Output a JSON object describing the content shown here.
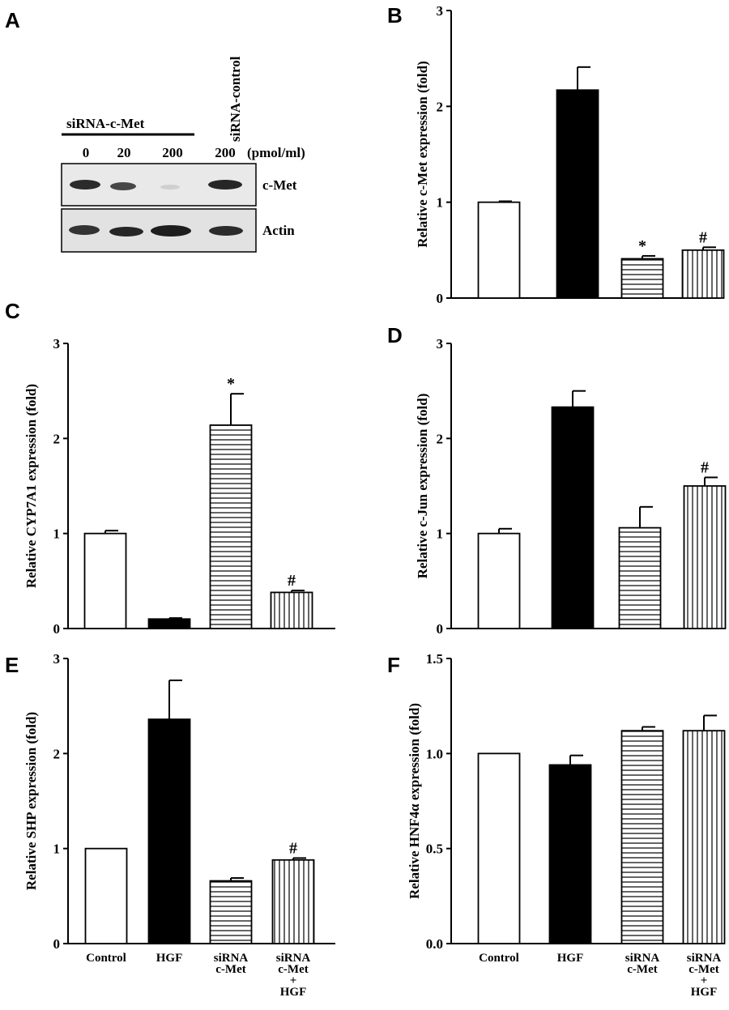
{
  "figure": {
    "panel_A": {
      "letter": "A",
      "treatment_label": "siRNA-c-Met",
      "control_label": "siRNA-control",
      "lanes": [
        "0",
        "20",
        "200",
        "200"
      ],
      "unit": "(pmol/ml)",
      "bands": [
        "c-Met",
        "Actin"
      ]
    }
  },
  "chart_data": [
    {
      "panel": "B",
      "type": "bar",
      "ylabel": "Relative c-Met expression (fold)",
      "categories": [
        "Control",
        "HGF",
        "siRNA c-Met",
        "siRNA c-Met + HGF"
      ],
      "values": [
        1.0,
        2.17,
        0.41,
        0.5
      ],
      "errors": [
        0.01,
        0.24,
        0.03,
        0.03
      ],
      "markers": [
        "",
        "",
        "*",
        "#"
      ],
      "ylim": [
        0,
        3
      ],
      "yticks": [
        "0",
        "1",
        "2",
        "3"
      ]
    },
    {
      "panel": "C",
      "type": "bar",
      "ylabel": "Relative CYP7A1 expression (fold)",
      "categories": [
        "Control",
        "HGF",
        "siRNA c-Met",
        "siRNA c-Met + HGF"
      ],
      "values": [
        1.0,
        0.1,
        2.14,
        0.38
      ],
      "errors": [
        0.03,
        0.01,
        0.33,
        0.02
      ],
      "markers": [
        "",
        "",
        "*",
        "#"
      ],
      "ylim": [
        0,
        3
      ],
      "yticks": [
        "0",
        "1",
        "2",
        "3"
      ]
    },
    {
      "panel": "D",
      "type": "bar",
      "ylabel": "Relative c-Jun expression (fold)",
      "categories": [
        "Control",
        "HGF",
        "siRNA c-Met",
        "siRNA c-Met + HGF"
      ],
      "values": [
        1.0,
        2.33,
        1.06,
        1.5
      ],
      "errors": [
        0.05,
        0.17,
        0.22,
        0.09
      ],
      "markers": [
        "",
        "",
        "",
        "#"
      ],
      "ylim": [
        0,
        3
      ],
      "yticks": [
        "0",
        "1",
        "2",
        "3"
      ]
    },
    {
      "panel": "E",
      "type": "bar",
      "ylabel": "Relative SHP expression (fold)",
      "categories": [
        "Control",
        "HGF",
        "siRNA c-Met",
        "siRNA c-Met + HGF"
      ],
      "values": [
        1.0,
        2.36,
        0.66,
        0.88
      ],
      "errors": [
        0.0,
        0.41,
        0.03,
        0.02
      ],
      "markers": [
        "",
        "",
        "",
        "#"
      ],
      "ylim": [
        0,
        3
      ],
      "yticks": [
        "0",
        "1",
        "2",
        "3"
      ],
      "xticklabels": [
        [
          "Control"
        ],
        [
          "HGF"
        ],
        [
          "siRNA",
          "c-Met"
        ],
        [
          "siRNA",
          "c-Met",
          "+",
          "HGF"
        ]
      ]
    },
    {
      "panel": "F",
      "type": "bar",
      "ylabel": "Relative HNF4α expression (fold)",
      "categories": [
        "Control",
        "HGF",
        "siRNA c-Met",
        "siRNA c-Met + HGF"
      ],
      "values": [
        1.0,
        0.94,
        1.12,
        1.12
      ],
      "errors": [
        0.0,
        0.05,
        0.02,
        0.08
      ],
      "markers": [
        "",
        "",
        "",
        ""
      ],
      "ylim": [
        0,
        1.5
      ],
      "yticks": [
        "0.0",
        "0.5",
        "1.0",
        "1.5"
      ],
      "xticklabels": [
        [
          "Control"
        ],
        [
          "HGF"
        ],
        [
          "siRNA",
          "c-Met"
        ],
        [
          "siRNA",
          "c-Met",
          "+",
          "HGF"
        ]
      ]
    }
  ]
}
